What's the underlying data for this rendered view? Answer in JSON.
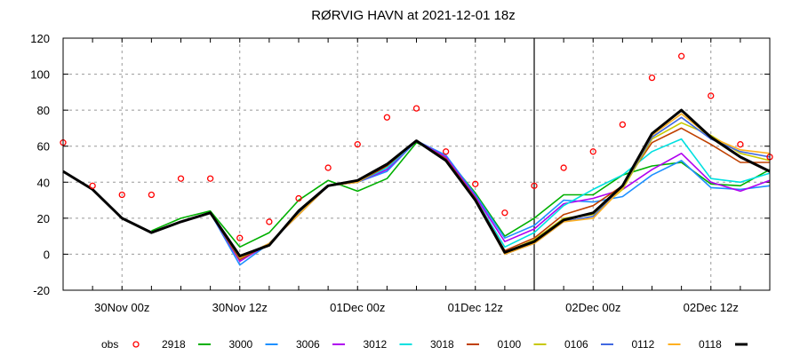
{
  "chart_data": {
    "type": "line",
    "title": "RØRVIG HAVN at 2021-12-01 18z",
    "xlim": [
      "2021-11-29T18",
      "2021-12-02T18"
    ],
    "ylim": [
      -20,
      120
    ],
    "yticks": [
      -20,
      0,
      20,
      40,
      60,
      80,
      100,
      120
    ],
    "xticks": [
      {
        "t": "2021-11-30T00",
        "label": "30Nov 00z"
      },
      {
        "t": "2021-11-30T12",
        "label": "30Nov 12z"
      },
      {
        "t": "2021-12-01T00",
        "label": "01Dec 00z"
      },
      {
        "t": "2021-12-01T12",
        "label": "01Dec 12z"
      },
      {
        "t": "2021-12-02T00",
        "label": "02Dec 00z"
      },
      {
        "t": "2021-12-02T12",
        "label": "02Dec 12z"
      }
    ],
    "grid": true,
    "analysis_time": "2021-12-01T18",
    "legend_position": "bottom",
    "x": [
      "2021-11-29T18",
      "2021-11-29T21",
      "2021-11-30T00",
      "2021-11-30T03",
      "2021-11-30T06",
      "2021-11-30T09",
      "2021-11-30T12",
      "2021-11-30T15",
      "2021-11-30T18",
      "2021-11-30T21",
      "2021-12-01T00",
      "2021-12-01T03",
      "2021-12-01T06",
      "2021-12-01T09",
      "2021-12-01T12",
      "2021-12-01T15",
      "2021-12-01T18",
      "2021-12-01T21",
      "2021-12-02T00",
      "2021-12-02T03",
      "2021-12-02T06",
      "2021-12-02T09",
      "2021-12-02T12",
      "2021-12-02T15",
      "2021-12-02T18"
    ],
    "series": [
      {
        "name": "obs",
        "marker": "circle",
        "color": "#ff0000",
        "values": [
          62,
          38,
          33,
          33,
          42,
          42,
          9,
          18,
          31,
          48,
          61,
          76,
          81,
          57,
          39,
          23,
          38,
          48,
          57,
          72,
          98,
          110,
          88,
          61,
          54
        ]
      },
      {
        "name": "2918",
        "color": "#00b000",
        "values": [
          null,
          null,
          null,
          13,
          20,
          24,
          4,
          12,
          30,
          41,
          35,
          42,
          62,
          54,
          34,
          10,
          20,
          33,
          33,
          44,
          49,
          51,
          39,
          38,
          47
        ]
      },
      {
        "name": "3000",
        "color": "#1e90ff",
        "values": [
          null,
          null,
          null,
          12,
          18,
          23,
          -6,
          6,
          23,
          38,
          40,
          46,
          63,
          55,
          33,
          9,
          16,
          30,
          29,
          32,
          44,
          52,
          37,
          36,
          38
        ]
      },
      {
        "name": "3006",
        "color": "#b000f0",
        "values": [
          null,
          null,
          null,
          12,
          18,
          23,
          -4,
          6,
          22,
          38,
          40,
          47,
          63,
          54,
          32,
          7,
          14,
          28,
          31,
          36,
          47,
          56,
          40,
          35,
          41
        ]
      },
      {
        "name": "3012",
        "color": "#00e0e0",
        "values": [
          null,
          null,
          null,
          12,
          18,
          23,
          -3,
          6,
          22,
          38,
          40,
          48,
          63,
          53,
          31,
          4,
          12,
          27,
          36,
          44,
          57,
          64,
          42,
          40,
          45
        ]
      },
      {
        "name": "3018",
        "color": "#c04000",
        "values": [
          null,
          null,
          null,
          12,
          18,
          23,
          -3,
          6,
          22,
          38,
          40,
          49,
          63,
          53,
          31,
          2,
          9,
          22,
          27,
          38,
          62,
          70,
          61,
          51,
          51
        ]
      },
      {
        "name": "0100",
        "color": "#c8c800",
        "values": [
          null,
          null,
          null,
          12,
          18,
          23,
          -2,
          6,
          22,
          38,
          40,
          50,
          63,
          52,
          30,
          1,
          8,
          20,
          22,
          36,
          64,
          73,
          66,
          56,
          52
        ]
      },
      {
        "name": "0106",
        "color": "#4169e1",
        "values": [
          null,
          null,
          null,
          12,
          18,
          23,
          -2,
          6,
          22,
          38,
          40,
          50,
          63,
          52,
          30,
          0,
          6,
          18,
          21,
          37,
          65,
          76,
          64,
          57,
          54
        ]
      },
      {
        "name": "0112",
        "color": "#ffb020",
        "values": [
          null,
          null,
          null,
          12,
          18,
          23,
          -2,
          6,
          22,
          38,
          40,
          50,
          63,
          52,
          30,
          0,
          6,
          18,
          20,
          37,
          66,
          78,
          65,
          58,
          56
        ]
      },
      {
        "name": "0118",
        "color": "#000000",
        "values": [
          46,
          36,
          20,
          12,
          18,
          23,
          -1,
          5,
          24,
          38,
          41,
          50,
          63,
          52,
          30,
          1,
          7,
          19,
          23,
          38,
          67,
          80,
          65,
          54,
          46
        ]
      }
    ]
  }
}
